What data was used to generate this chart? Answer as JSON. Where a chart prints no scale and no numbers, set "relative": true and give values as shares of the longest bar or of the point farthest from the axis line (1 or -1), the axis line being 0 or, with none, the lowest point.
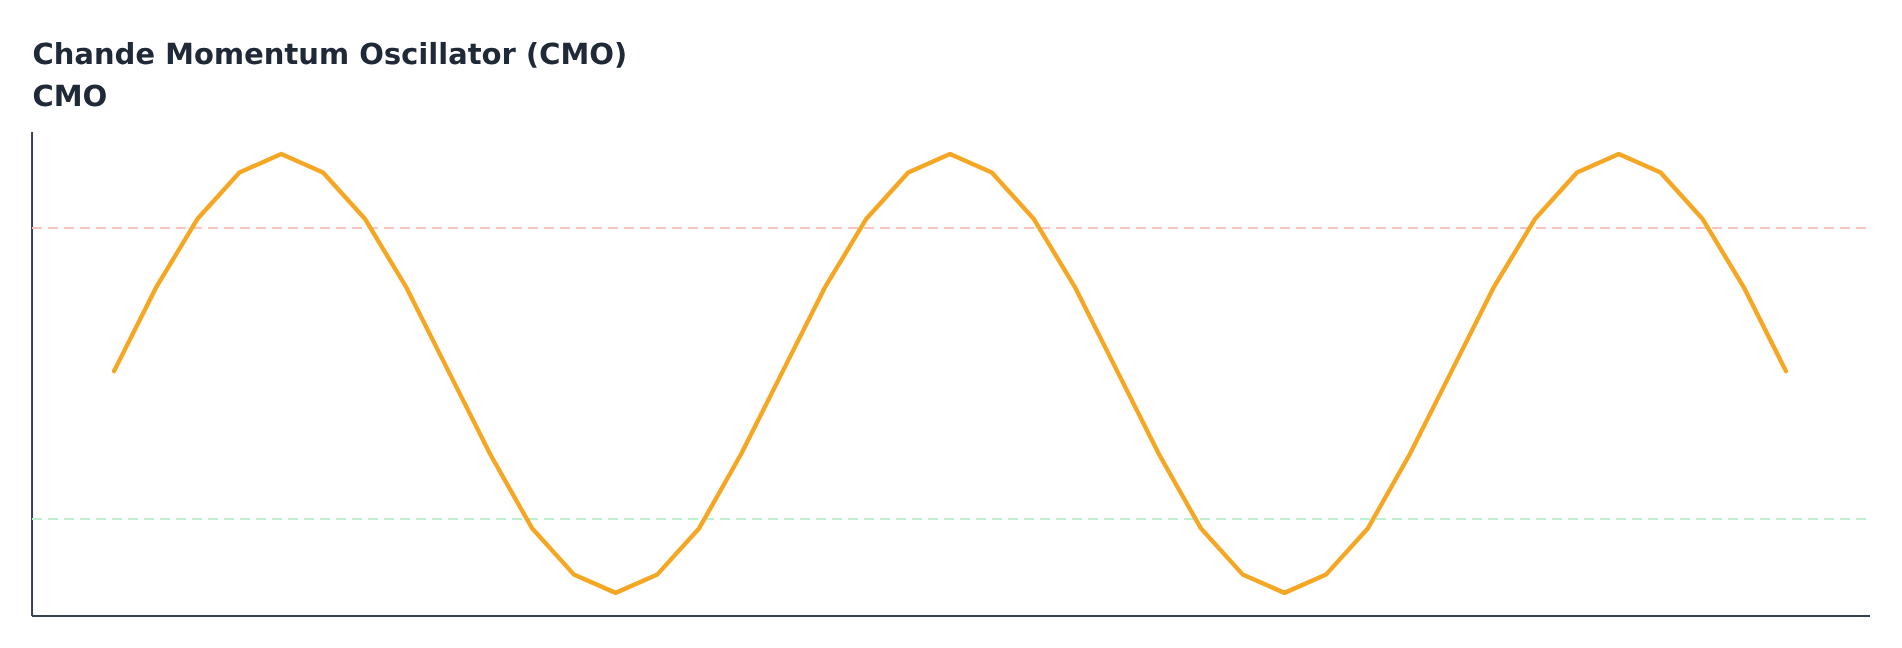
{
  "chart_data": {
    "type": "line",
    "title": "Chande Momentum Oscillator (CMO)",
    "subtitle": "CMO",
    "relative": true,
    "categories": [
      null,
      null,
      null,
      null,
      null,
      null,
      null,
      null,
      null,
      null,
      null,
      null,
      null,
      null,
      null,
      null,
      null,
      null,
      null,
      null,
      null,
      null,
      null,
      null,
      null,
      null,
      null,
      null,
      null,
      null,
      null,
      null,
      null,
      null,
      null,
      null,
      null,
      null,
      null,
      null,
      null
    ],
    "series": [
      {
        "color": "#f5a623",
        "values": [
          0.53,
          0.71,
          0.86,
          0.96,
          1.0,
          0.96,
          0.86,
          0.71,
          0.53,
          0.35,
          0.19,
          0.09,
          0.05,
          0.09,
          0.19,
          0.35,
          0.53,
          0.71,
          0.86,
          0.96,
          1.0,
          0.96,
          0.86,
          0.71,
          0.53,
          0.35,
          0.19,
          0.09,
          0.05,
          0.09,
          0.19,
          0.35,
          0.53,
          0.71,
          0.86,
          0.96,
          1.0,
          0.96,
          0.86,
          0.71,
          0.53
        ]
      }
    ],
    "ref_lines": [
      {
        "axis": "y",
        "value": 0.84,
        "color": "#f8c4c0",
        "line_style": "dashed"
      },
      {
        "axis": "y",
        "value": 0.21,
        "color": "#bbf0d0",
        "line_style": "dashed"
      }
    ],
    "marker": "none",
    "line_style": "solid"
  }
}
